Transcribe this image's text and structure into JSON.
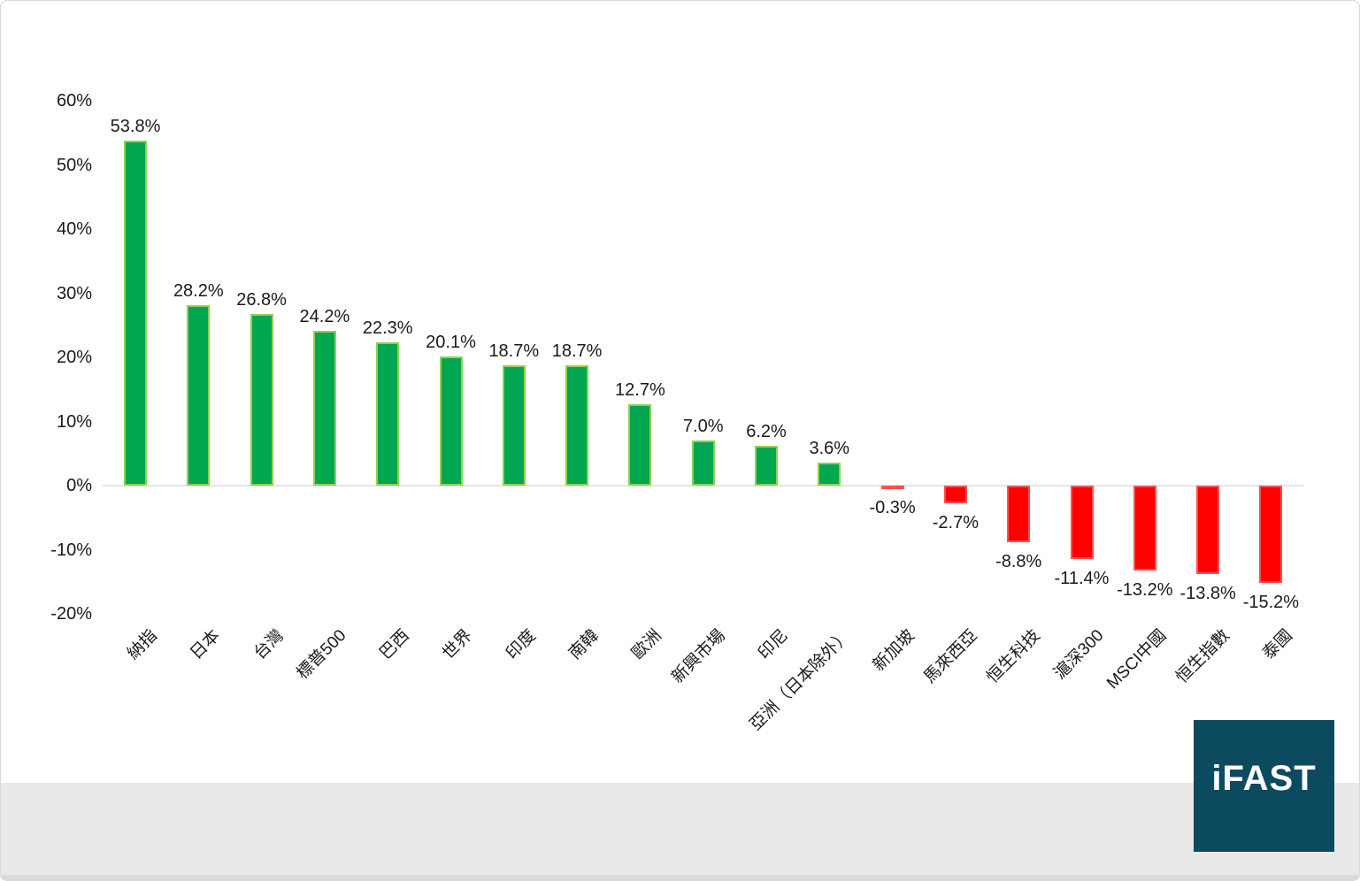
{
  "chart_data": {
    "type": "bar",
    "title": "",
    "xlabel": "",
    "ylabel": "",
    "categories": [
      "納指",
      "日本",
      "台灣",
      "標普500",
      "巴西",
      "世界",
      "印度",
      "南韓",
      "歐洲",
      "新興市場",
      "印尼",
      "亞洲（日本除外）",
      "新加坡",
      "馬來西亞",
      "恒生科技",
      "滬深300",
      "MSCI中國",
      "恒生指數",
      "泰國"
    ],
    "values": [
      53.8,
      28.2,
      26.8,
      24.2,
      22.3,
      20.1,
      18.7,
      18.7,
      12.7,
      7.0,
      6.2,
      3.6,
      -0.3,
      -2.7,
      -8.8,
      -11.4,
      -13.2,
      -13.8,
      -15.2
    ],
    "labels": [
      "53.8%",
      "28.2%",
      "26.8%",
      "24.2%",
      "22.3%",
      "20.1%",
      "18.7%",
      "18.7%",
      "12.7%",
      "7.0%",
      "6.2%",
      "3.6%",
      "-0.3%",
      "-2.7%",
      "-8.8%",
      "-11.4%",
      "-13.2%",
      "-13.8%",
      "-15.2%"
    ],
    "yticks": [
      {
        "label": "60%",
        "value": 60
      },
      {
        "label": "50%",
        "value": 50
      },
      {
        "label": "40%",
        "value": 40
      },
      {
        "label": "30%",
        "value": 30
      },
      {
        "label": "20%",
        "value": 20
      },
      {
        "label": "10%",
        "value": 10
      },
      {
        "label": "0%",
        "value": 0
      },
      {
        "label": "-10%",
        "value": -10
      },
      {
        "label": "-20%",
        "value": -20
      }
    ],
    "ylim": [
      -20,
      60
    ],
    "grid": false,
    "legend": "none",
    "colors": {
      "positive_fill": "#00A650",
      "positive_border": "#92D050",
      "negative_fill": "#FF0000",
      "negative_border": "#FF5050",
      "axis_line": "#E4E4E4",
      "text": "#1A1A1A"
    }
  },
  "logo": {
    "text": "iFAST",
    "background": "#0C4A5F",
    "color": "#FFFFFF"
  }
}
